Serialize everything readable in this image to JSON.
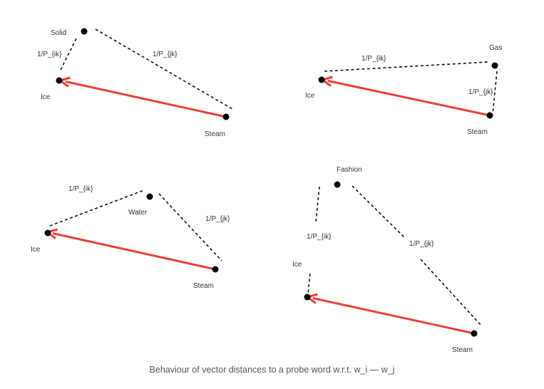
{
  "panels": [
    {
      "id": "solid",
      "probe_label": "Solid",
      "ice_label": "Ice",
      "steam_label": "Steam",
      "ik_label": "1/P_{ik}",
      "jk_label": "1/P_{jk}"
    },
    {
      "id": "gas",
      "probe_label": "Gas",
      "ice_label": "Ice",
      "steam_label": "Steam",
      "ik_label": "1/P_{ik}",
      "jk_label": "1/P_{jk}"
    },
    {
      "id": "water",
      "probe_label": "Water",
      "ice_label": "Ice",
      "steam_label": "Steam",
      "ik_label": "1/P_{ik}",
      "jk_label": "1/P_{jk}"
    },
    {
      "id": "fashion",
      "probe_label": "Fashion",
      "ice_label": "Ice",
      "steam_label": "Steam",
      "ik_label": "1/P_{ik}",
      "jk_label": "1/P_{jk}"
    }
  ],
  "caption": "Behaviour of vector distances to a probe word w.r.t. w_i — w_j",
  "colors": {
    "arrow": "#e8403a",
    "dashed_line": "#111111",
    "node": "#000000"
  }
}
